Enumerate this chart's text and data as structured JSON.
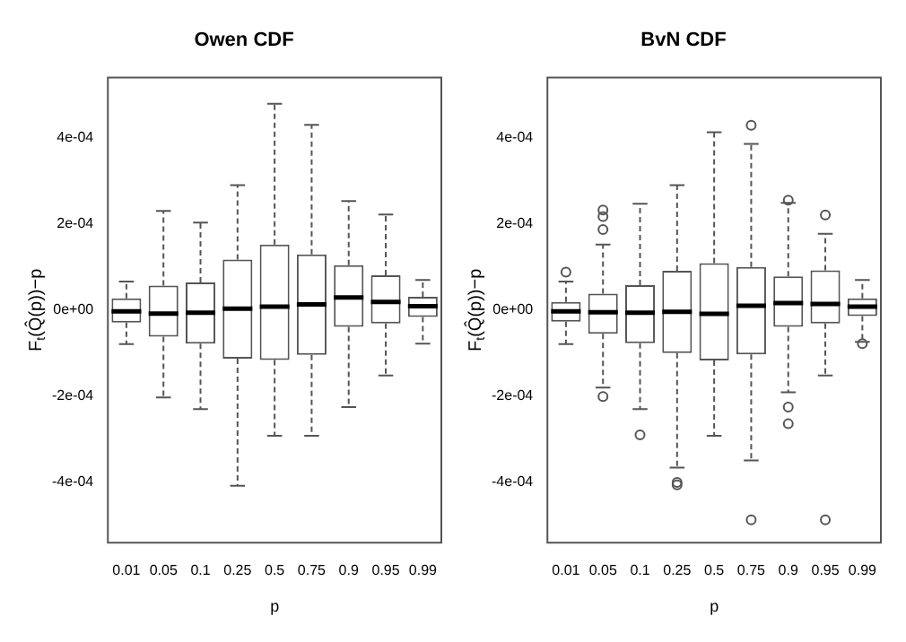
{
  "chart_data": [
    {
      "type": "box",
      "title": "Owen CDF",
      "xlabel": "p",
      "ylabel": "F$_{t}$(Q̂(p))−p",
      "color": "#555555",
      "categories": [
        "0.01",
        "0.05",
        "0.1",
        "0.25",
        "0.5",
        "0.75",
        "0.9",
        "0.95",
        "0.99"
      ],
      "ylim": [
        -0.00054,
        0.00054
      ],
      "yticks": [
        {
          "value": -0.0004,
          "label": "-4e-04"
        },
        {
          "value": -0.0002,
          "label": "-2e-04"
        },
        {
          "value": 0,
          "label": "0e+00"
        },
        {
          "value": 0.0002,
          "label": "2e-04"
        },
        {
          "value": 0.0004,
          "label": "4e-04"
        }
      ],
      "boxes": [
        {
          "low": -7.9e-05,
          "q1": -2.9e-05,
          "median": -3e-06,
          "q3": 2.7e-05,
          "high": 6.6e-05
        },
        {
          "low": -0.000203,
          "q1": -6.2e-05,
          "median": -8e-06,
          "q3": 5.7e-05,
          "high": 0.00023
        },
        {
          "low": -0.00023,
          "q1": -7.8e-05,
          "median": -6e-06,
          "q3": 6.4e-05,
          "high": 0.000203
        },
        {
          "low": -0.000408,
          "q1": -0.000113,
          "median": 3e-06,
          "q3": 0.000117,
          "high": 0.00029
        },
        {
          "low": -0.000292,
          "q1": -0.000116,
          "median": 8e-06,
          "q3": 0.000152,
          "high": 0.000479
        },
        {
          "low": -0.000292,
          "q1": -0.000104,
          "median": 1.3e-05,
          "q3": 0.000129,
          "high": 0.00043
        },
        {
          "low": -0.000225,
          "q1": -3.9e-05,
          "median": 2.9e-05,
          "q3": 0.000104,
          "high": 0.000253
        },
        {
          "low": -0.000152,
          "q1": -3.1e-05,
          "median": 1.9e-05,
          "q3": 8.1e-05,
          "high": 0.000222
        },
        {
          "low": -7.8e-05,
          "q1": -1.6e-05,
          "median": 9e-06,
          "q3": 3.1e-05,
          "high": 7e-05
        }
      ]
    },
    {
      "type": "box",
      "title": "BvN CDF",
      "xlabel": "p",
      "ylabel": "F$_{t}$(Q̂(p))−p",
      "color": "#555555",
      "marker": "circle",
      "categories": [
        "0.01",
        "0.05",
        "0.1",
        "0.25",
        "0.5",
        "0.75",
        "0.9",
        "0.95",
        "0.99"
      ],
      "ylim": [
        -0.00054,
        0.00054
      ],
      "yticks": [
        {
          "value": -0.0004,
          "label": "-4e-04"
        },
        {
          "value": -0.0002,
          "label": "-2e-04"
        },
        {
          "value": 0,
          "label": "0e+00"
        },
        {
          "value": 0.0002,
          "label": "2e-04"
        },
        {
          "value": 0.0004,
          "label": "4e-04"
        }
      ],
      "boxes": [
        {
          "low": -7.9e-05,
          "q1": -2.7e-05,
          "median": -3e-06,
          "q3": 1.9e-05,
          "high": 6.6e-05,
          "outliers": [
            8.8e-05
          ]
        },
        {
          "low": -0.00018,
          "q1": -5.5e-05,
          "median": -5e-06,
          "q3": 3.8e-05,
          "high": 0.000152,
          "outliers": [
            0.000232,
            0.000217,
            0.000187,
            -0.000201
          ]
        },
        {
          "low": -0.00023,
          "q1": -7.7e-05,
          "median": -6e-06,
          "q3": 5.8e-05,
          "high": 0.000247,
          "outliers": [
            -0.00029
          ]
        },
        {
          "low": -0.000366,
          "q1": -0.0001,
          "median": -4e-06,
          "q3": 9.1e-05,
          "high": 0.00029,
          "outliers": [
            -0.0004,
            -0.000406
          ]
        },
        {
          "low": -0.000292,
          "q1": -0.000117,
          "median": -9e-06,
          "q3": 0.000109,
          "high": 0.000413
        },
        {
          "low": -0.000349,
          "q1": -0.000103,
          "median": 1e-05,
          "q3": 0.0001,
          "high": 0.000386,
          "outliers": [
            0.000429,
            -0.000487
          ]
        },
        {
          "low": -0.000191,
          "q1": -3.9e-05,
          "median": 1.6e-05,
          "q3": 7.8e-05,
          "high": 0.000249,
          "outliers": [
            0.000255,
            -0.000225,
            -0.000264
          ]
        },
        {
          "low": -0.000152,
          "q1": -3.1e-05,
          "median": 1.4e-05,
          "q3": 9.2e-05,
          "high": 0.000177,
          "outliers": [
            0.000221,
            -0.000487
          ]
        },
        {
          "low": -7.4e-05,
          "q1": -1.4e-05,
          "median": 8e-06,
          "q3": 2.7e-05,
          "high": 7e-05,
          "outliers": [
            -7.8e-05
          ]
        }
      ]
    }
  ]
}
